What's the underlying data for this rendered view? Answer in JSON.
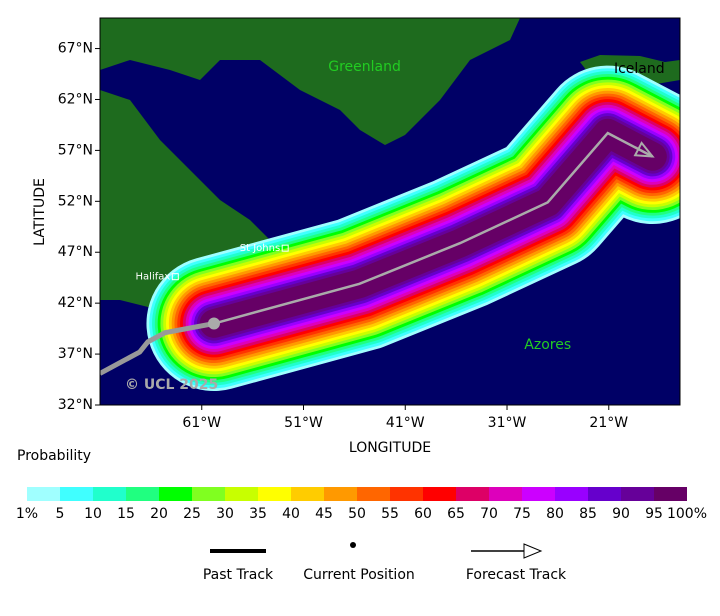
{
  "map": {
    "xlim": [
      -71,
      -14
    ],
    "ylim": [
      32,
      70
    ],
    "xticks": [
      {
        "value": -61,
        "label": "61°W"
      },
      {
        "value": -51,
        "label": "51°W"
      },
      {
        "value": -41,
        "label": "41°W"
      },
      {
        "value": -31,
        "label": "31°W"
      },
      {
        "value": -21,
        "label": "21°W"
      }
    ],
    "yticks": [
      {
        "value": 67,
        "label": "67°N"
      },
      {
        "value": 62,
        "label": "62°N"
      },
      {
        "value": 57,
        "label": "57°N"
      },
      {
        "value": 52,
        "label": "52°N"
      },
      {
        "value": 47,
        "label": "47°N"
      },
      {
        "value": 42,
        "label": "42°N"
      },
      {
        "value": 37,
        "label": "37°N"
      },
      {
        "value": 32,
        "label": "32°N"
      }
    ],
    "xlabel": "LONGITUDE",
    "ylabel": "LATITUDE",
    "regions": [
      {
        "name": "Greenland",
        "lon": -45,
        "lat": 65.2,
        "color": "#22cc22"
      },
      {
        "name": "Iceland",
        "lon": -18,
        "lat": 65.0,
        "color": "#000000"
      },
      {
        "name": "Azores",
        "lon": -27,
        "lat": 37.9,
        "color": "#22cc22"
      }
    ],
    "cities": [
      {
        "name": "Halifax",
        "lon": -63.6,
        "lat": 44.6
      },
      {
        "name": "St Johns",
        "lon": -52.8,
        "lat": 47.4
      }
    ],
    "copyright": "© UCL 2025",
    "past_track": {
      "lon": [
        -71,
        -67.1,
        -66.3,
        -64.6,
        -59.8
      ],
      "lat": [
        35.1,
        37.2,
        38.2,
        39.1,
        40.0
      ]
    },
    "current_position": {
      "lon": -59.8,
      "lat": 40.0
    },
    "forecast_track": {
      "lon": [
        -59.8,
        -45.5,
        -35.6,
        -27.0,
        -21.1,
        -16.7
      ],
      "lat": [
        40.0,
        43.9,
        47.9,
        51.9,
        58.7,
        56.4
      ]
    }
  },
  "colorbar": {
    "title": "Probability",
    "colors": [
      "#a0ffff",
      "#40ffff",
      "#20ffcc",
      "#20ff80",
      "#00ff00",
      "#80ff20",
      "#c8ff00",
      "#ffff00",
      "#ffcc00",
      "#ff9900",
      "#ff6600",
      "#ff3300",
      "#ff0000",
      "#dd0066",
      "#dd00bb",
      "#cc00ff",
      "#9900ff",
      "#6600cc",
      "#660099",
      "#660066"
    ],
    "labels": [
      "1%",
      "5",
      "10",
      "15",
      "20",
      "25",
      "30",
      "35",
      "40",
      "45",
      "50",
      "55",
      "60",
      "65",
      "70",
      "75",
      "80",
      "85",
      "90",
      "95",
      "100%"
    ]
  },
  "legend": [
    "Past Track",
    "Current Position",
    "Forecast Track"
  ]
}
